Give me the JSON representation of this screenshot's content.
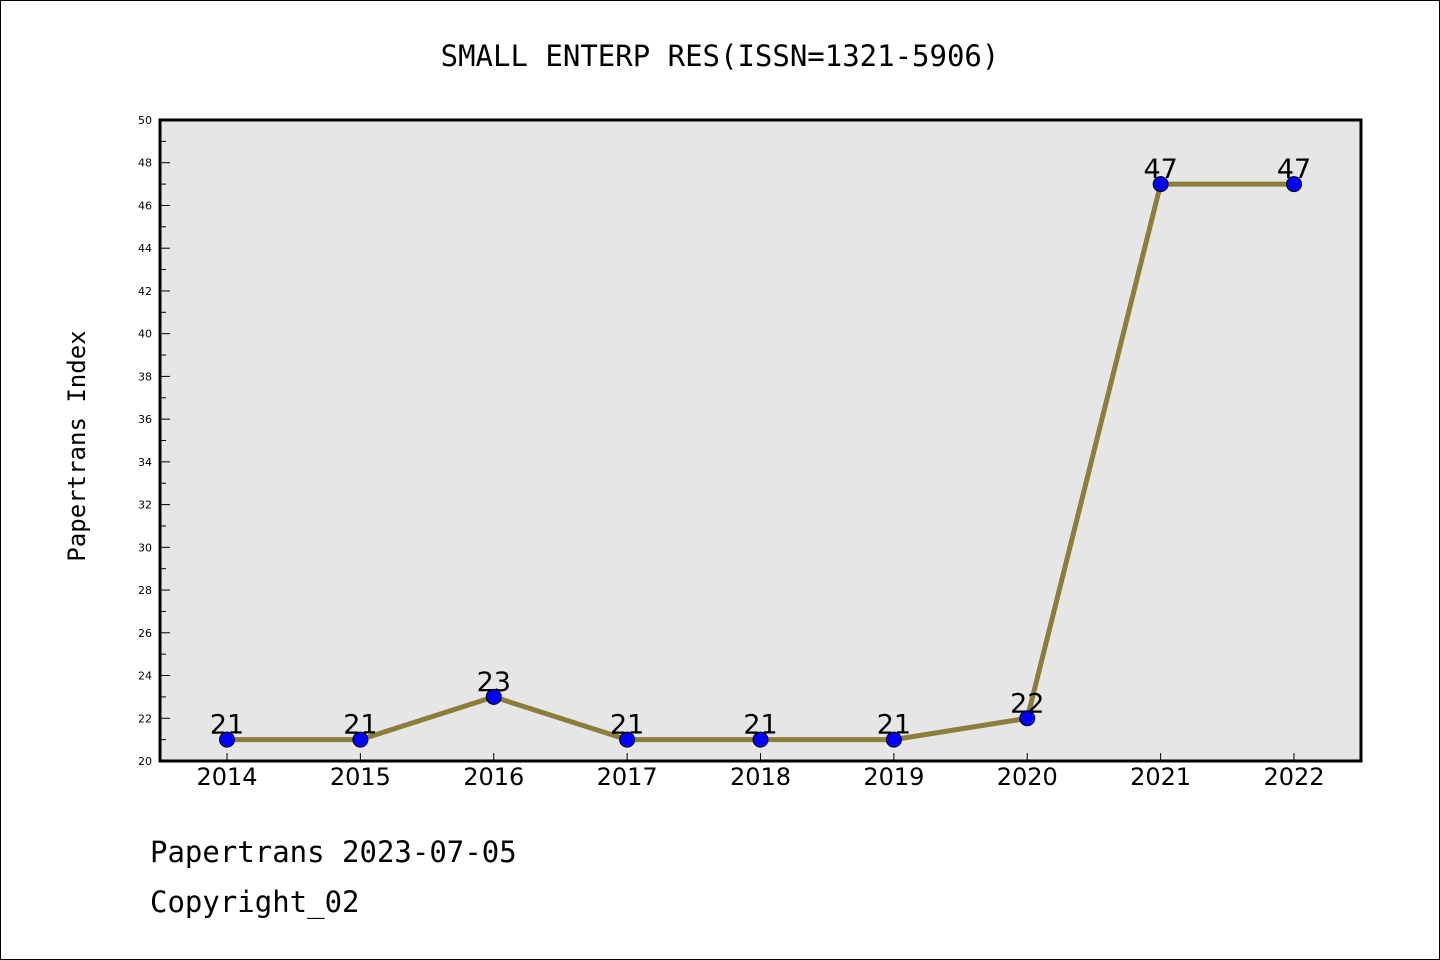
{
  "chart_data": {
    "type": "line",
    "title": "SMALL ENTERP RES(ISSN=1321-5906)",
    "xlabel": "",
    "ylabel": "Papertrans Index",
    "categories": [
      "2014",
      "2015",
      "2016",
      "2017",
      "2018",
      "2019",
      "2020",
      "2021",
      "2022"
    ],
    "series": [
      {
        "values": [
          21,
          21,
          23,
          21,
          21,
          21,
          22,
          47,
          47
        ]
      }
    ],
    "ylim": [
      20,
      50
    ],
    "yticks": [
      20,
      22,
      24,
      26,
      28,
      30,
      32,
      34,
      36,
      38,
      40,
      42,
      44,
      46,
      48,
      50
    ],
    "data_labels": true,
    "grid": false,
    "colors": {
      "line": "#8b7d3a",
      "marker": "#0000ff",
      "plot_background": "#e6e6e6",
      "axes": "#000000"
    }
  },
  "footer": {
    "line1": "Papertrans 2023-07-05",
    "line2": "Copyright_02"
  }
}
